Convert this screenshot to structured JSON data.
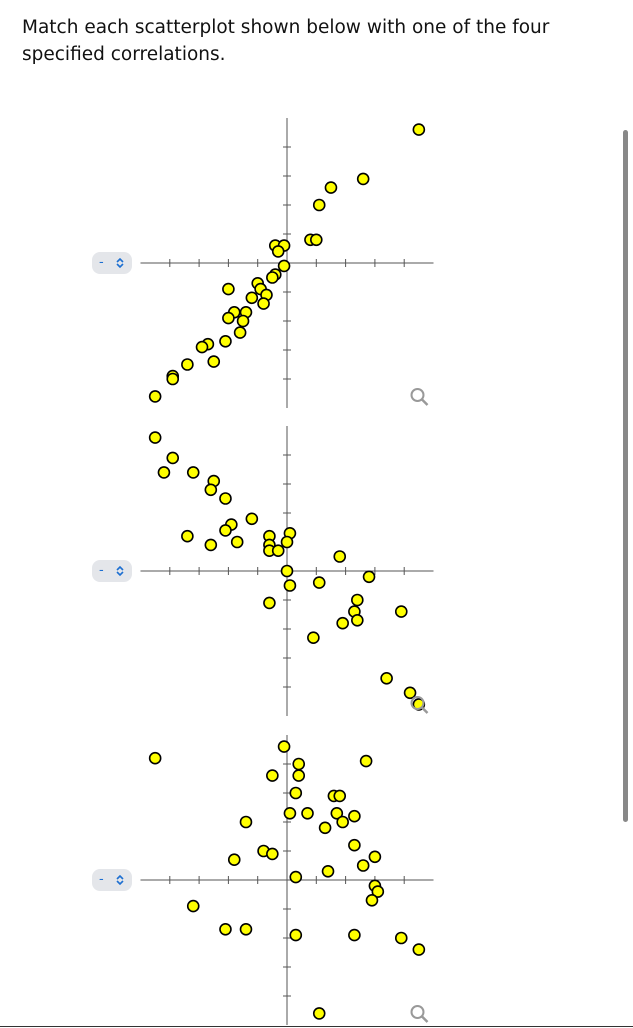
{
  "instruction": "Match each scatterplot shown below with one of the four specified correlations.",
  "selects": [
    "-",
    "-",
    "-"
  ],
  "chart_data": [
    {
      "type": "scatter",
      "color": "#ffff00",
      "xlim": [
        -5,
        5
      ],
      "ylim": [
        -5,
        5
      ],
      "xticks": [
        -4,
        -3,
        -2,
        -1,
        1,
        2,
        3,
        4
      ],
      "yticks": [
        -4,
        -3,
        -2,
        -1,
        1,
        2,
        3,
        4
      ],
      "x": [
        4.5,
        2.6,
        1.5,
        1.1,
        0.8,
        1.0,
        -0.4,
        -0.1,
        -0.3,
        -0.1,
        -0.4,
        -0.5,
        -1.0,
        -0.9,
        -0.7,
        -1.2,
        -0.8,
        -2.0,
        -1.8,
        -1.4,
        -2.0,
        -1.5,
        -1.6,
        -2.1,
        -2.7,
        -2.9,
        -2.5,
        -3.4,
        -3.9,
        -3.9,
        -4.5
      ],
      "y": [
        4.6,
        2.9,
        2.6,
        2.0,
        0.8,
        0.8,
        0.6,
        0.6,
        0.4,
        -0.1,
        -0.4,
        -0.5,
        -0.7,
        -0.9,
        -1.1,
        -1.2,
        -1.4,
        -0.9,
        -1.7,
        -1.7,
        -1.9,
        -2.0,
        -2.4,
        -2.7,
        -2.8,
        -2.9,
        -3.4,
        -3.5,
        -3.9,
        -4.0,
        -4.6
      ]
    },
    {
      "type": "scatter",
      "color": "#ffff00",
      "xlim": [
        -5,
        5
      ],
      "ylim": [
        -5,
        5
      ],
      "xticks": [
        -4,
        -3,
        -2,
        -1,
        1,
        2,
        3,
        4
      ],
      "yticks": [
        -4,
        -3,
        -2,
        -1,
        1,
        2,
        3,
        4
      ],
      "x": [
        -4.5,
        -3.9,
        -4.2,
        -3.2,
        -2.5,
        -2.6,
        -2.1,
        -1.2,
        -1.9,
        -2.1,
        -3.4,
        -1.7,
        -2.6,
        -0.6,
        0.1,
        -0.6,
        0,
        -0.6,
        -0.3,
        1.8,
        0,
        2.8,
        0.1,
        1.1,
        -0.6,
        2.4,
        2.3,
        1.9,
        2.4,
        3.9,
        0.9,
        3.4,
        4.2,
        4.5
      ],
      "y": [
        4.6,
        3.9,
        3.4,
        3.4,
        3.1,
        2.8,
        2.5,
        1.8,
        1.6,
        1.4,
        1.2,
        1.0,
        0.9,
        1.2,
        1.3,
        0.9,
        1.0,
        0.7,
        0.7,
        0.5,
        0,
        -0.2,
        -0.5,
        -0.4,
        -1.1,
        -1.0,
        -1.4,
        -1.8,
        -1.7,
        -1.4,
        -2.3,
        -3.7,
        -4.2,
        -4.6
      ]
    },
    {
      "type": "scatter",
      "color": "#ffff00",
      "xlim": [
        -5,
        5
      ],
      "ylim": [
        -5,
        5
      ],
      "xticks": [
        -4,
        -3,
        -2,
        -1,
        1,
        2,
        3,
        4
      ],
      "yticks": [
        -4,
        -3,
        -2,
        -1,
        1,
        2,
        3,
        4
      ],
      "x": [
        -4.5,
        -0.1,
        0.4,
        2.7,
        -0.5,
        0.4,
        0.3,
        1.6,
        1.8,
        0.1,
        0.7,
        1.7,
        2.3,
        1.9,
        -1.4,
        1.3,
        2.3,
        -0.8,
        -0.5,
        3.0,
        -1.8,
        2.6,
        1.4,
        0.3,
        3.0,
        3.1,
        2.9,
        -3.2,
        -2.1,
        -1.4,
        0.3,
        2.3,
        3.9,
        4.5,
        1.1
      ],
      "y": [
        4.2,
        4.6,
        4.0,
        4.1,
        3.6,
        3.6,
        3.0,
        2.9,
        2.9,
        2.3,
        2.3,
        2.3,
        2.2,
        2.0,
        2.0,
        1.8,
        1.2,
        1.0,
        0.9,
        0.8,
        0.7,
        0.5,
        0.3,
        0.1,
        -0.2,
        -0.4,
        -0.7,
        -0.9,
        -1.7,
        -1.7,
        -1.9,
        -1.9,
        -2.0,
        -2.4,
        -4.6
      ]
    }
  ]
}
